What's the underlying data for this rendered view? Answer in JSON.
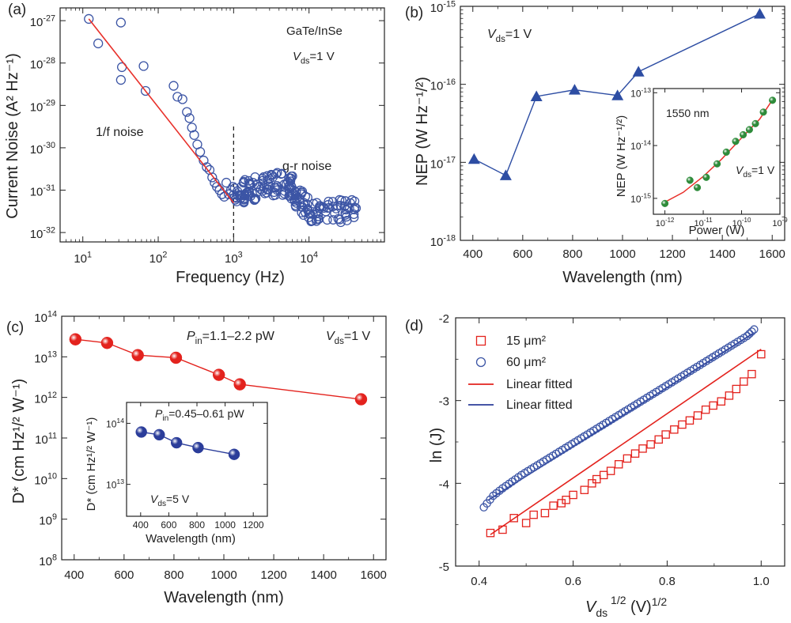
{
  "chart_data": [
    {
      "panel_label": "(a)",
      "type": "scatter",
      "xlabel": "Frequency (Hz)",
      "ylabel": "Current Noise (A² Hz⁻¹)",
      "xscale": "log",
      "yscale": "log",
      "xlim": [
        5,
        100000
      ],
      "ylim": [
        6e-33,
        2e-27
      ],
      "xticks": [
        10,
        100,
        1000,
        10000
      ],
      "xtick_labels": [
        [
          "10",
          "1"
        ],
        [
          "10",
          "2"
        ],
        [
          "10",
          "3"
        ],
        [
          "10",
          "4"
        ]
      ],
      "yticks": [
        1e-32,
        1e-31,
        1e-30,
        1e-29,
        1e-28,
        1e-27
      ],
      "ytick_labels": [
        [
          "10",
          "-32"
        ],
        [
          "10",
          "-31"
        ],
        [
          "10",
          "-30"
        ],
        [
          "10",
          "-29"
        ],
        [
          "10",
          "-28"
        ],
        [
          "10",
          "-27"
        ]
      ],
      "annotations": [
        "GaTe/InSe",
        "1/f noise",
        "g-r noise"
      ],
      "vds_label": "=1 V",
      "vline_x": 1000,
      "fit": {
        "x": [
          12,
          1000
        ],
        "y": [
          1.1e-27,
          5e-32
        ],
        "color": "#e8302a"
      },
      "series": [
        {
          "marker": "open-circle",
          "color": "#3c55a5",
          "x": [
            12,
            16,
            32,
            33,
            64,
            68,
            32,
            160,
            180,
            210,
            240,
            260,
            280,
            300,
            330,
            360,
            400,
            440,
            480,
            520,
            560,
            600,
            650,
            700,
            750,
            800,
            860,
            920,
            980
          ],
          "y": [
            1.1e-27,
            2.9e-28,
            9e-28,
            8e-29,
            8.5e-29,
            2.2e-29,
            4e-29,
            2.9e-29,
            1.6e-29,
            1.4e-29,
            7e-30,
            5e-30,
            3e-30,
            2e-30,
            1.2e-30,
            8e-31,
            5e-31,
            3.5e-31,
            3e-31,
            2e-31,
            1.5e-31,
            1.2e-31,
            1e-31,
            8e-32,
            7e-32,
            1.5e-31,
            8e-32,
            1e-31,
            1.2e-31
          ]
        }
      ]
    },
    {
      "panel_label": "(b)",
      "type": "line",
      "xlabel": "Wavelength (nm)",
      "ylabel": "NEP (W Hz⁻¹/²)",
      "yscale": "log",
      "xlim": [
        350,
        1650
      ],
      "ylim": [
        1e-18,
        1e-15
      ],
      "xticks": [
        400,
        600,
        800,
        1000,
        1200,
        1400,
        1600
      ],
      "yticks": [
        1e-18,
        1e-17,
        1e-16,
        1e-15
      ],
      "ytick_labels": [
        [
          "10",
          "-18"
        ],
        [
          "10",
          "-17"
        ],
        [
          "10",
          "-16"
        ],
        [
          "10",
          "-15"
        ]
      ],
      "vds_label": "=1 V",
      "series": [
        {
          "marker": "triangle",
          "color": "#2d4da3",
          "x": [
            405,
            532,
            655,
            808,
            980,
            1064,
            1550
          ],
          "y": [
            1.1e-17,
            6.8e-18,
            7e-17,
            8.5e-17,
            7.2e-17,
            1.45e-16,
            8e-16
          ]
        }
      ],
      "inset": {
        "xlabel": "Power (W)",
        "ylabel": "NEP (W Hz⁻¹/²)",
        "xscale": "log",
        "yscale": "log",
        "xlim": [
          5e-13,
          1e-09
        ],
        "ylim": [
          5e-16,
          1.2e-13
        ],
        "xticks": [
          1e-12,
          1e-11,
          1e-10,
          1e-09
        ],
        "xtick_labels": [
          [
            "10",
            "-12"
          ],
          [
            "10",
            "-11"
          ],
          [
            "10",
            "-10"
          ],
          [
            "10",
            "-9"
          ]
        ],
        "yticks": [
          1e-15,
          1e-14,
          1e-13
        ],
        "ytick_labels": [
          [
            "10",
            "-15"
          ],
          [
            "10",
            "-14"
          ],
          [
            "10",
            "-13"
          ]
        ],
        "annotation": "1550 nm",
        "vds_label": "=1 V",
        "series": [
          {
            "marker": "sphere",
            "color": "#2e8b3a",
            "x": [
              1e-12,
              4.5e-12,
              7e-12,
              1.2e-11,
              2.3e-11,
              4e-11,
              7e-11,
              1.1e-10,
              1.6e-10,
              2.3e-10,
              3.7e-10,
              6.4e-10
            ],
            "y": [
              8e-16,
              2.2e-15,
              1.6e-15,
              2.5e-15,
              4.5e-15,
              7.5e-15,
              1.2e-14,
              1.6e-14,
              2e-14,
              2.6e-14,
              4.3e-14,
              7.2e-14
            ]
          }
        ],
        "fit": {
          "color": "#e8302a",
          "x": [
            1e-12,
            3e-12,
            1e-11,
            3e-11,
            1e-10,
            3e-10,
            6.5e-10
          ],
          "y": [
            8.5e-16,
            1.3e-15,
            2.6e-15,
            5.5e-15,
            1.4e-14,
            3.2e-14,
            7.5e-14
          ]
        }
      }
    },
    {
      "panel_label": "(c)",
      "type": "line",
      "xlabel": "Wavelength (nm)",
      "ylabel": "D* (cm Hz¹/² W⁻¹)",
      "yscale": "log",
      "xlim": [
        350,
        1650
      ],
      "ylim": [
        100000000.0,
        100000000000000.0
      ],
      "xticks": [
        400,
        600,
        800,
        1000,
        1200,
        1400,
        1600
      ],
      "yticks": [
        100000000.0,
        1000000000.0,
        10000000000.0,
        100000000000.0,
        1000000000000.0,
        10000000000000.0,
        100000000000000.0
      ],
      "ytick_labels": [
        [
          "10",
          "8"
        ],
        [
          "10",
          "9"
        ],
        [
          "10",
          "10"
        ],
        [
          "10",
          "11"
        ],
        [
          "10",
          "12"
        ],
        [
          "10",
          "13"
        ],
        [
          "10",
          "14"
        ]
      ],
      "pin_label": "=1.1–2.2 pW",
      "vds_label": "=1 V",
      "series": [
        {
          "marker": "sphere",
          "color": "#e3221d",
          "x": [
            405,
            532,
            655,
            808,
            980,
            1064,
            1550
          ],
          "y": [
            27000000000000.0,
            22000000000000.0,
            11000000000000.0,
            9500000000000.0,
            3600000000000.0,
            2100000000000.0,
            900000000000.0
          ]
        }
      ],
      "inset": {
        "xlabel": "Wavelength (nm)",
        "ylabel": "D* (cm Hz¹/² W⁻¹)",
        "yscale": "log",
        "xlim": [
          300,
          1300
        ],
        "ylim": [
          3000000000000.0,
          220000000000000.0
        ],
        "xticks": [
          400,
          600,
          800,
          1000,
          1200
        ],
        "yticks": [
          10000000000000.0,
          100000000000000.0
        ],
        "ytick_labels": [
          [
            "10",
            "13"
          ],
          [
            "10",
            "14"
          ]
        ],
        "pin_label": "=0.45–0.61 pW",
        "vds_label": "=5 V",
        "series": [
          {
            "marker": "sphere",
            "color": "#2b3d9a",
            "x": [
              405,
              532,
              655,
              808,
              1064
            ],
            "y": [
              72000000000000.0,
              65000000000000.0,
              48000000000000.0,
              40000000000000.0,
              31000000000000.0
            ]
          }
        ]
      }
    },
    {
      "panel_label": "(d)",
      "type": "scatter",
      "xlabel": "(V)",
      "ylabel": "ln (J)",
      "xlim": [
        0.35,
        1.05
      ],
      "ylim": [
        -5,
        -2
      ],
      "xticks": [
        0.4,
        0.6,
        0.8,
        1.0
      ],
      "xtick_labels": [
        "0.4",
        "0.6",
        "0.8",
        "1.0"
      ],
      "yticks": [
        -5,
        -4,
        -3,
        -2
      ],
      "ytick_labels": [
        "-5",
        "-4",
        "-3",
        "-2"
      ],
      "legend": [
        {
          "label": "15 μm²",
          "marker": "open-square",
          "color": "#e3221d"
        },
        {
          "label": "60 μm²",
          "marker": "open-circle",
          "color": "#3c55a5"
        },
        {
          "label": "Linear fitted",
          "marker": "line",
          "color": "#e3221d"
        },
        {
          "label": "Linear fitted",
          "marker": "line",
          "color": "#2b3d9a"
        }
      ],
      "series": [
        {
          "name": "15 μm²",
          "marker": "open-square",
          "color": "#e3221d",
          "x": [
            0.424,
            0.45,
            0.474,
            0.5,
            0.516,
            0.54,
            0.558,
            0.575,
            0.585,
            0.6,
            0.624,
            0.64,
            0.65,
            0.665,
            0.68,
            0.697,
            0.715,
            0.732,
            0.748,
            0.765,
            0.782,
            0.797,
            0.815,
            0.832,
            0.848,
            0.865,
            0.882,
            0.898,
            0.915,
            0.932,
            0.947,
            0.963,
            0.98,
            1.0
          ],
          "y": [
            -4.6,
            -4.56,
            -4.42,
            -4.48,
            -4.38,
            -4.36,
            -4.27,
            -4.24,
            -4.2,
            -4.14,
            -4.08,
            -4.0,
            -3.95,
            -3.9,
            -3.85,
            -3.77,
            -3.7,
            -3.64,
            -3.58,
            -3.53,
            -3.47,
            -3.41,
            -3.35,
            -3.29,
            -3.24,
            -3.18,
            -3.11,
            -3.06,
            -3.01,
            -2.94,
            -2.86,
            -2.77,
            -2.68,
            -2.44
          ]
        },
        {
          "name": "60 μm²",
          "marker": "open-circle",
          "color": "#3c55a5",
          "x": [
            0.41,
            0.43,
            0.45,
            0.47,
            0.49,
            0.51,
            0.53,
            0.55,
            0.57,
            0.59,
            0.61,
            0.63,
            0.65,
            0.67,
            0.69,
            0.71,
            0.73,
            0.75,
            0.77,
            0.79,
            0.81,
            0.83,
            0.85,
            0.87,
            0.89,
            0.91,
            0.93,
            0.95,
            0.97,
            0.985
          ],
          "y": [
            -4.29,
            -4.15,
            -4.06,
            -3.98,
            -3.9,
            -3.83,
            -3.76,
            -3.69,
            -3.62,
            -3.55,
            -3.48,
            -3.41,
            -3.34,
            -3.27,
            -3.2,
            -3.13,
            -3.06,
            -2.99,
            -2.92,
            -2.85,
            -2.78,
            -2.71,
            -2.64,
            -2.57,
            -2.5,
            -2.43,
            -2.36,
            -2.29,
            -2.22,
            -2.14
          ]
        }
      ],
      "fits": [
        {
          "color": "#e3221d",
          "x": [
            0.424,
            1.0
          ],
          "y": [
            -4.62,
            -2.38
          ]
        },
        {
          "color": "#2b3d9a",
          "x": [
            0.42,
            0.985
          ],
          "y": [
            -4.2,
            -2.18
          ]
        }
      ]
    }
  ]
}
